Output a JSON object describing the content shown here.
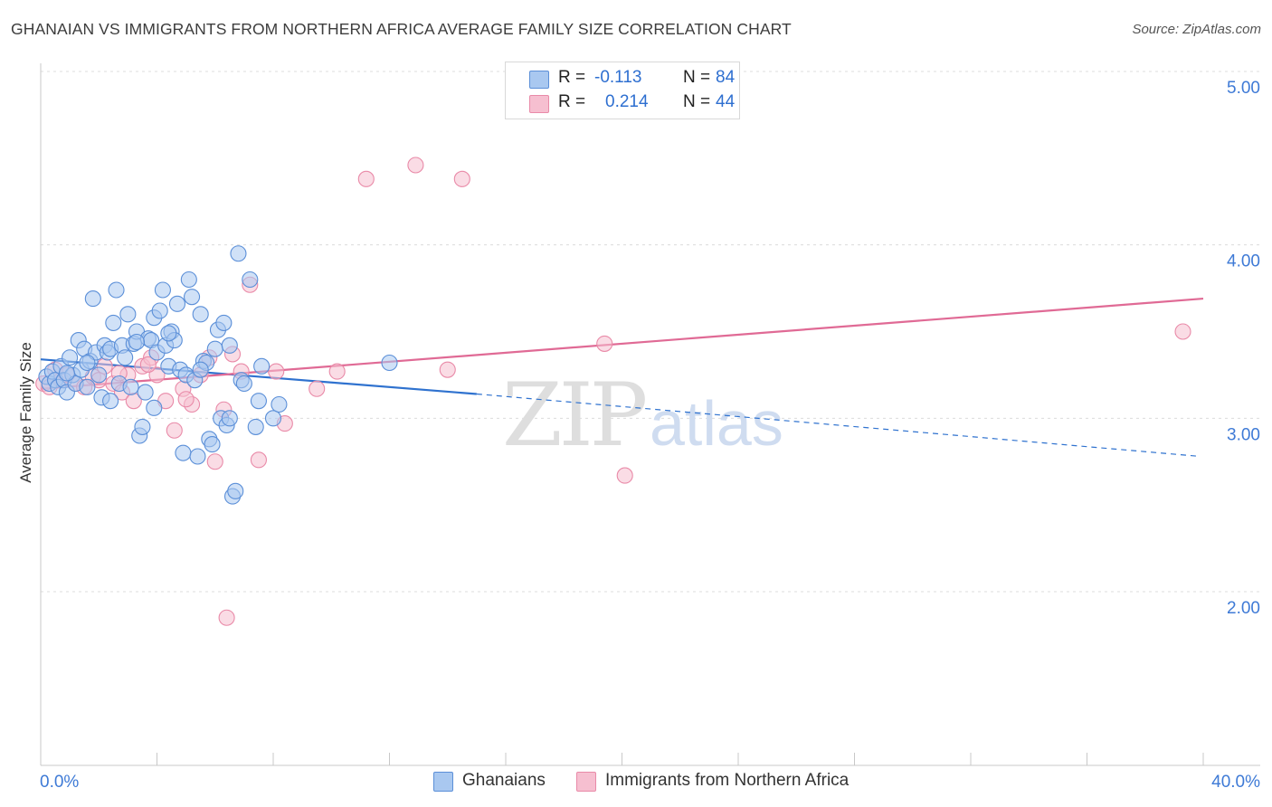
{
  "title": "GHANAIAN VS IMMIGRANTS FROM NORTHERN AFRICA AVERAGE FAMILY SIZE CORRELATION CHART",
  "source": "Source: ZipAtlas.com",
  "watermark": {
    "zip": "ZIP",
    "atlas": "atlas"
  },
  "colors": {
    "blue_fill": "#a9c8f0",
    "blue_stroke": "#5b8fd8",
    "blue_line": "#2f72cf",
    "pink_fill": "#f6bfd0",
    "pink_stroke": "#e98aa8",
    "pink_line": "#e06a95",
    "axis_text": "#3e7ad6",
    "grid": "#dcdcdc"
  },
  "stats": [
    {
      "swatch_color": "#a9c8f0",
      "r_label": "R =",
      "r_value": "-0.113",
      "n_label": "N =",
      "n_value": "84"
    },
    {
      "swatch_color": "#f6bfd0",
      "r_label": "R =",
      "r_value": "0.214",
      "n_label": "N =",
      "n_value": "44"
    }
  ],
  "legend": [
    {
      "label": "Ghanaians",
      "color": "#a9c8f0"
    },
    {
      "label": "Immigrants from Northern Africa",
      "color": "#f6bfd0"
    }
  ],
  "chart_data": {
    "type": "scatter",
    "title": "GHANAIAN VS IMMIGRANTS FROM NORTHERN AFRICA AVERAGE FAMILY SIZE CORRELATION CHART",
    "xlabel": "",
    "ylabel": "Average Family Size",
    "xlim": [
      0,
      40
    ],
    "ylim": [
      1.0,
      5.1
    ],
    "x_tick_labels": [
      "0.0%",
      "40.0%"
    ],
    "y_ticks": [
      2.0,
      3.0,
      4.0,
      5.0
    ],
    "y_tick_labels": [
      "2.00",
      "3.00",
      "4.00",
      "5.00"
    ],
    "grid": "horizontal dashed",
    "legend_position": "bottom-center",
    "series": [
      {
        "name": "Ghanaians",
        "r": -0.113,
        "n": 84,
        "trend": {
          "x0": 0.0,
          "y0": 3.34,
          "x1": 15.0,
          "y1": 3.14,
          "dashed_to_x": 39.9,
          "dashed_to_y": 2.78
        },
        "points": [
          [
            0.2,
            3.24
          ],
          [
            0.3,
            3.2
          ],
          [
            0.4,
            3.27
          ],
          [
            0.5,
            3.22
          ],
          [
            0.6,
            3.18
          ],
          [
            0.7,
            3.3
          ],
          [
            0.8,
            3.22
          ],
          [
            0.9,
            3.15
          ],
          [
            1.0,
            3.35
          ],
          [
            1.1,
            3.25
          ],
          [
            1.2,
            3.2
          ],
          [
            1.3,
            3.45
          ],
          [
            1.4,
            3.28
          ],
          [
            1.5,
            3.4
          ],
          [
            1.6,
            3.18
          ],
          [
            1.7,
            3.33
          ],
          [
            1.8,
            3.69
          ],
          [
            1.9,
            3.38
          ],
          [
            2.0,
            3.25
          ],
          [
            2.1,
            3.12
          ],
          [
            2.2,
            3.42
          ],
          [
            2.3,
            3.38
          ],
          [
            2.4,
            3.4
          ],
          [
            2.5,
            3.55
          ],
          [
            2.6,
            3.74
          ],
          [
            2.7,
            3.2
          ],
          [
            2.8,
            3.42
          ],
          [
            2.9,
            3.35
          ],
          [
            3.0,
            3.6
          ],
          [
            3.1,
            3.18
          ],
          [
            3.2,
            3.43
          ],
          [
            3.3,
            3.5
          ],
          [
            3.4,
            2.9
          ],
          [
            3.5,
            2.95
          ],
          [
            3.6,
            3.15
          ],
          [
            3.7,
            3.46
          ],
          [
            3.8,
            3.45
          ],
          [
            3.9,
            3.58
          ],
          [
            4.0,
            3.38
          ],
          [
            4.1,
            3.62
          ],
          [
            4.2,
            3.74
          ],
          [
            4.3,
            3.42
          ],
          [
            4.4,
            3.3
          ],
          [
            4.5,
            3.5
          ],
          [
            4.6,
            3.45
          ],
          [
            4.7,
            3.66
          ],
          [
            4.8,
            3.28
          ],
          [
            4.9,
            2.8
          ],
          [
            5.0,
            3.25
          ],
          [
            5.1,
            3.8
          ],
          [
            5.2,
            3.7
          ],
          [
            5.3,
            3.22
          ],
          [
            5.4,
            2.78
          ],
          [
            5.5,
            3.6
          ],
          [
            5.6,
            3.33
          ],
          [
            5.7,
            3.32
          ],
          [
            5.8,
            2.88
          ],
          [
            5.9,
            2.85
          ],
          [
            6.0,
            3.4
          ],
          [
            6.1,
            3.51
          ],
          [
            6.2,
            3.0
          ],
          [
            6.3,
            3.55
          ],
          [
            6.4,
            2.96
          ],
          [
            6.5,
            3.0
          ],
          [
            6.6,
            2.55
          ],
          [
            6.7,
            2.58
          ],
          [
            6.8,
            3.95
          ],
          [
            6.9,
            3.22
          ],
          [
            7.0,
            3.2
          ],
          [
            7.2,
            3.8
          ],
          [
            7.5,
            3.1
          ],
          [
            8.0,
            3.0
          ],
          [
            8.2,
            3.08
          ],
          [
            7.4,
            2.95
          ],
          [
            7.6,
            3.3
          ],
          [
            3.9,
            3.06
          ],
          [
            2.4,
            3.1
          ],
          [
            1.6,
            3.32
          ],
          [
            0.9,
            3.26
          ],
          [
            3.3,
            3.44
          ],
          [
            4.4,
            3.49
          ],
          [
            5.5,
            3.28
          ],
          [
            6.5,
            3.42
          ],
          [
            12.0,
            3.32
          ]
        ]
      },
      {
        "name": "Immigrants from Northern Africa",
        "r": 0.214,
        "n": 44,
        "trend": {
          "x0": 0.0,
          "y0": 3.17,
          "x1": 40.0,
          "y1": 3.69
        },
        "points": [
          [
            0.1,
            3.2
          ],
          [
            0.3,
            3.18
          ],
          [
            0.5,
            3.28
          ],
          [
            0.7,
            3.22
          ],
          [
            0.9,
            3.25
          ],
          [
            1.2,
            3.2
          ],
          [
            1.5,
            3.18
          ],
          [
            1.8,
            3.24
          ],
          [
            2.0,
            3.22
          ],
          [
            2.2,
            3.3
          ],
          [
            2.5,
            3.2
          ],
          [
            2.8,
            3.15
          ],
          [
            3.0,
            3.25
          ],
          [
            3.2,
            3.1
          ],
          [
            3.5,
            3.3
          ],
          [
            3.8,
            3.35
          ],
          [
            4.0,
            3.25
          ],
          [
            4.3,
            3.1
          ],
          [
            4.6,
            2.93
          ],
          [
            4.9,
            3.17
          ],
          [
            5.2,
            3.08
          ],
          [
            5.5,
            3.25
          ],
          [
            5.8,
            3.35
          ],
          [
            6.0,
            2.75
          ],
          [
            6.3,
            3.05
          ],
          [
            6.6,
            3.37
          ],
          [
            6.9,
            3.27
          ],
          [
            7.2,
            3.77
          ],
          [
            7.5,
            2.76
          ],
          [
            8.1,
            3.27
          ],
          [
            9.5,
            3.17
          ],
          [
            10.2,
            3.27
          ],
          [
            11.2,
            4.38
          ],
          [
            12.9,
            4.46
          ],
          [
            14.0,
            3.28
          ],
          [
            14.5,
            4.38
          ],
          [
            19.4,
            3.43
          ],
          [
            20.1,
            2.67
          ],
          [
            39.3,
            3.5
          ],
          [
            6.4,
            1.85
          ],
          [
            3.7,
            3.31
          ],
          [
            5.0,
            3.11
          ],
          [
            2.7,
            3.26
          ],
          [
            8.4,
            2.97
          ]
        ]
      }
    ]
  }
}
